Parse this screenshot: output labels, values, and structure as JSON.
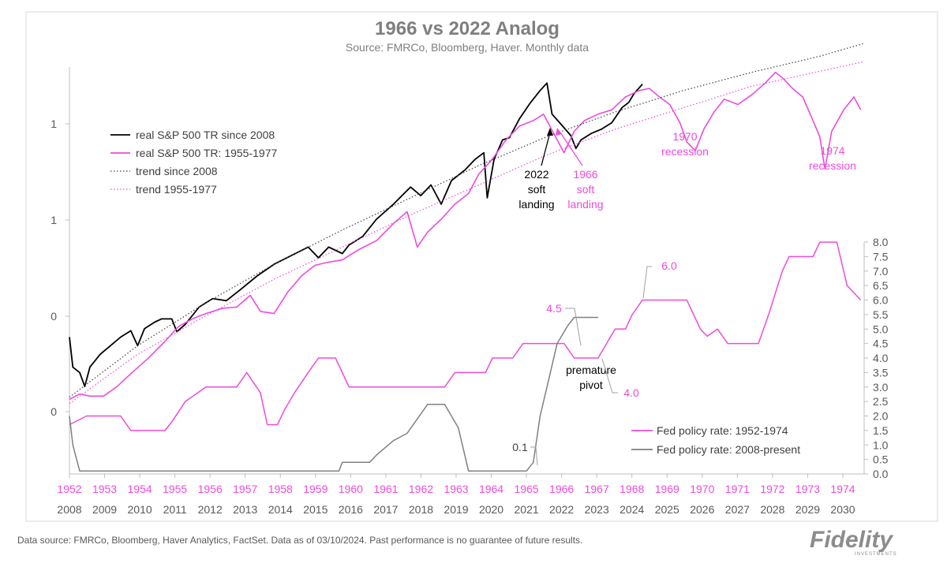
{
  "chart_data": {
    "type": "line",
    "title": "1966 vs 2022 Analog",
    "subtitle": "Source: FMRCo, Bloomberg, Haver.  Monthly data",
    "left_axis": {
      "scale": "log",
      "tick_labels": [
        "1",
        "1",
        "0",
        "0"
      ]
    },
    "right_axis": {
      "min": 0.0,
      "max": 8.0,
      "step": 0.5,
      "tick_labels": [
        "8.0",
        "7.5",
        "7.0",
        "6.5",
        "6.0",
        "5.5",
        "5.0",
        "4.5",
        "4.0",
        "3.5",
        "3.0",
        "2.5",
        "2.0",
        "1.5",
        "1.0",
        "0.5",
        "0.0"
      ]
    },
    "x_axis_top": {
      "color": "#ee4bdb",
      "labels": [
        "1952",
        "1953",
        "1954",
        "1955",
        "1956",
        "1957",
        "1958",
        "1959",
        "1960",
        "1961",
        "1962",
        "1963",
        "1964",
        "1965",
        "1966",
        "1967",
        "1968",
        "1969",
        "1970",
        "1971",
        "1972",
        "1973",
        "1974"
      ]
    },
    "x_axis_bottom": {
      "labels": [
        "2008",
        "2009",
        "2010",
        "2011",
        "2012",
        "2013",
        "2014",
        "2015",
        "2016",
        "2017",
        "2018",
        "2019",
        "2020",
        "2021",
        "2022",
        "2023",
        "2024",
        "2025",
        "2026",
        "2027",
        "2028",
        "2029",
        "2030"
      ]
    },
    "series": [
      {
        "name": "real S&P 500 TR since 2008",
        "color": "#000000",
        "axis": "left",
        "points": [
          [
            2008.0,
            0.88
          ],
          [
            2008.1,
            0.6
          ],
          [
            2008.3,
            0.55
          ],
          [
            2008.45,
            0.42
          ],
          [
            2008.6,
            0.6
          ],
          [
            2008.9,
            0.72
          ],
          [
            2009.2,
            0.8
          ],
          [
            2009.5,
            0.88
          ],
          [
            2009.8,
            0.94
          ],
          [
            2010.0,
            0.8
          ],
          [
            2010.2,
            0.96
          ],
          [
            2010.5,
            1.02
          ],
          [
            2010.7,
            1.05
          ],
          [
            2011.0,
            1.05
          ],
          [
            2011.15,
            0.93
          ],
          [
            2011.4,
            1.0
          ],
          [
            2011.8,
            1.16
          ],
          [
            2012.2,
            1.24
          ],
          [
            2012.6,
            1.22
          ],
          [
            2013.0,
            1.32
          ],
          [
            2013.5,
            1.45
          ],
          [
            2014.0,
            1.56
          ],
          [
            2014.5,
            1.64
          ],
          [
            2015.0,
            1.72
          ],
          [
            2015.3,
            1.62
          ],
          [
            2015.6,
            1.72
          ],
          [
            2016.0,
            1.66
          ],
          [
            2016.2,
            1.74
          ],
          [
            2016.6,
            1.82
          ],
          [
            2017.0,
            1.98
          ],
          [
            2017.5,
            2.12
          ],
          [
            2018.0,
            2.28
          ],
          [
            2018.3,
            2.2
          ],
          [
            2018.6,
            2.3
          ],
          [
            2018.9,
            2.12
          ],
          [
            2019.2,
            2.34
          ],
          [
            2019.6,
            2.44
          ],
          [
            2019.9,
            2.54
          ],
          [
            2020.15,
            2.6
          ],
          [
            2020.25,
            2.18
          ],
          [
            2020.45,
            2.54
          ],
          [
            2020.7,
            2.72
          ],
          [
            2020.9,
            2.74
          ],
          [
            2021.2,
            2.92
          ],
          [
            2021.5,
            3.06
          ],
          [
            2021.8,
            3.18
          ],
          [
            2022.0,
            3.25
          ],
          [
            2022.15,
            2.96
          ],
          [
            2022.4,
            2.87
          ],
          [
            2022.7,
            2.76
          ],
          [
            2022.85,
            2.64
          ],
          [
            2023.0,
            2.72
          ],
          [
            2023.3,
            2.78
          ],
          [
            2023.6,
            2.82
          ],
          [
            2023.9,
            2.88
          ],
          [
            2024.2,
            3.02
          ],
          [
            2024.4,
            3.07
          ],
          [
            2024.55,
            3.15
          ],
          [
            2024.8,
            3.24
          ]
        ]
      },
      {
        "name": "real S&P 500 TR: 1955-1977",
        "color": "#ee4bdb",
        "axis": "left",
        "points": [
          [
            2008.0,
            0.3
          ],
          [
            2008.3,
            0.35
          ],
          [
            2008.6,
            0.33
          ],
          [
            2009.0,
            0.33
          ],
          [
            2009.4,
            0.42
          ],
          [
            2009.8,
            0.54
          ],
          [
            2010.3,
            0.68
          ],
          [
            2010.8,
            0.84
          ],
          [
            2011.2,
            0.98
          ],
          [
            2011.6,
            1.05
          ],
          [
            2012.0,
            1.1
          ],
          [
            2012.5,
            1.15
          ],
          [
            2012.9,
            1.16
          ],
          [
            2013.3,
            1.27
          ],
          [
            2013.6,
            1.12
          ],
          [
            2014.0,
            1.1
          ],
          [
            2014.4,
            1.3
          ],
          [
            2014.8,
            1.45
          ],
          [
            2015.2,
            1.55
          ],
          [
            2015.6,
            1.58
          ],
          [
            2016.0,
            1.6
          ],
          [
            2016.5,
            1.7
          ],
          [
            2017.0,
            1.78
          ],
          [
            2017.5,
            1.94
          ],
          [
            2017.9,
            2.05
          ],
          [
            2018.2,
            1.72
          ],
          [
            2018.5,
            1.86
          ],
          [
            2018.9,
            1.98
          ],
          [
            2019.3,
            2.12
          ],
          [
            2019.7,
            2.22
          ],
          [
            2020.0,
            2.4
          ],
          [
            2020.4,
            2.54
          ],
          [
            2020.8,
            2.72
          ],
          [
            2021.2,
            2.85
          ],
          [
            2021.6,
            2.9
          ],
          [
            2021.9,
            2.96
          ],
          [
            2022.2,
            2.78
          ],
          [
            2022.5,
            2.6
          ],
          [
            2022.8,
            2.8
          ],
          [
            2023.1,
            2.9
          ],
          [
            2023.5,
            2.96
          ],
          [
            2023.9,
            3.0
          ],
          [
            2024.3,
            3.12
          ],
          [
            2024.7,
            3.18
          ],
          [
            2025.0,
            3.2
          ],
          [
            2025.3,
            3.12
          ],
          [
            2025.6,
            3.05
          ],
          [
            2025.9,
            2.88
          ],
          [
            2026.1,
            2.7
          ],
          [
            2026.35,
            2.62
          ],
          [
            2026.6,
            2.82
          ],
          [
            2026.9,
            2.98
          ],
          [
            2027.2,
            3.1
          ],
          [
            2027.6,
            3.05
          ],
          [
            2028.0,
            3.14
          ],
          [
            2028.4,
            3.25
          ],
          [
            2028.7,
            3.35
          ],
          [
            2028.9,
            3.3
          ],
          [
            2029.2,
            3.2
          ],
          [
            2029.5,
            3.12
          ],
          [
            2029.8,
            2.9
          ],
          [
            2030.0,
            2.75
          ],
          [
            2030.15,
            2.45
          ],
          [
            2030.35,
            2.8
          ],
          [
            2030.7,
            3.0
          ],
          [
            2031.0,
            3.12
          ],
          [
            2031.2,
            3.0
          ]
        ]
      },
      {
        "name": "trend since 2008",
        "color": "#404040",
        "style": "dotted",
        "axis": "left",
        "points": [
          [
            2008.0,
            0.32
          ],
          [
            2010.0,
            0.8
          ],
          [
            2012.0,
            1.2
          ],
          [
            2014.0,
            1.56
          ],
          [
            2016.0,
            1.88
          ],
          [
            2018.0,
            2.18
          ],
          [
            2020.0,
            2.48
          ],
          [
            2022.0,
            2.75
          ],
          [
            2024.0,
            2.98
          ],
          [
            2026.0,
            3.18
          ],
          [
            2028.0,
            3.35
          ],
          [
            2030.0,
            3.5
          ],
          [
            2031.3,
            3.62
          ]
        ]
      },
      {
        "name": "trend 1955-1977",
        "color": "#ee4bdb",
        "style": "dotted",
        "axis": "left",
        "points": [
          [
            2008.0,
            0.26
          ],
          [
            2010.0,
            0.72
          ],
          [
            2012.0,
            1.08
          ],
          [
            2014.0,
            1.42
          ],
          [
            2016.0,
            1.72
          ],
          [
            2018.0,
            2.02
          ],
          [
            2020.0,
            2.3
          ],
          [
            2022.0,
            2.58
          ],
          [
            2024.0,
            2.82
          ],
          [
            2026.0,
            3.02
          ],
          [
            2028.0,
            3.22
          ],
          [
            2030.0,
            3.36
          ],
          [
            2031.3,
            3.45
          ]
        ]
      },
      {
        "name": "Fed policy rate: 1952-1974",
        "color": "#ee4bdb",
        "axis": "right",
        "points": [
          [
            2008.0,
            1.7
          ],
          [
            2008.5,
            2.0
          ],
          [
            2009.5,
            2.0
          ],
          [
            2009.8,
            1.5
          ],
          [
            2010.8,
            1.5
          ],
          [
            2011.0,
            1.8
          ],
          [
            2011.4,
            2.5
          ],
          [
            2012.0,
            3.0
          ],
          [
            2012.9,
            3.0
          ],
          [
            2013.2,
            3.5
          ],
          [
            2013.6,
            2.8
          ],
          [
            2013.8,
            1.7
          ],
          [
            2014.1,
            1.7
          ],
          [
            2014.3,
            2.2
          ],
          [
            2014.6,
            2.8
          ],
          [
            2015.0,
            3.5
          ],
          [
            2015.3,
            4.0
          ],
          [
            2015.8,
            4.0
          ],
          [
            2016.2,
            3.0
          ],
          [
            2017.0,
            3.0
          ],
          [
            2019.0,
            3.0
          ],
          [
            2019.3,
            3.5
          ],
          [
            2020.2,
            3.5
          ],
          [
            2020.4,
            4.0
          ],
          [
            2021.0,
            4.0
          ],
          [
            2021.3,
            4.5
          ],
          [
            2022.5,
            4.5
          ],
          [
            2022.8,
            4.0
          ],
          [
            2023.5,
            4.0
          ],
          [
            2024.0,
            5.0
          ],
          [
            2024.3,
            5.0
          ],
          [
            2024.5,
            5.5
          ],
          [
            2024.8,
            6.0
          ],
          [
            2026.1,
            6.0
          ],
          [
            2026.5,
            5.0
          ],
          [
            2026.7,
            4.75
          ],
          [
            2027.0,
            5.0
          ],
          [
            2027.3,
            4.5
          ],
          [
            2028.2,
            4.5
          ],
          [
            2028.5,
            5.5
          ],
          [
            2028.9,
            7.0
          ],
          [
            2029.1,
            7.5
          ],
          [
            2029.8,
            7.5
          ],
          [
            2030.0,
            8.0
          ],
          [
            2030.5,
            8.0
          ],
          [
            2030.8,
            6.5
          ],
          [
            2031.0,
            6.25
          ],
          [
            2031.2,
            6.0
          ]
        ]
      },
      {
        "name": "Fed policy rate: 2008-present",
        "color": "#808080",
        "axis": "right",
        "points": [
          [
            2008.0,
            2.0
          ],
          [
            2008.1,
            1.0
          ],
          [
            2008.3,
            0.1
          ],
          [
            2015.9,
            0.1
          ],
          [
            2016.0,
            0.4
          ],
          [
            2016.8,
            0.4
          ],
          [
            2017.0,
            0.65
          ],
          [
            2017.5,
            1.15
          ],
          [
            2017.9,
            1.4
          ],
          [
            2018.2,
            1.9
          ],
          [
            2018.5,
            2.4
          ],
          [
            2019.0,
            2.4
          ],
          [
            2019.4,
            1.6
          ],
          [
            2019.7,
            0.1
          ],
          [
            2021.4,
            0.1
          ],
          [
            2021.6,
            0.4
          ],
          [
            2021.8,
            2.0
          ],
          [
            2022.0,
            3.0
          ],
          [
            2022.3,
            4.5
          ],
          [
            2022.6,
            5.1
          ],
          [
            2022.8,
            5.4
          ],
          [
            2023.5,
            5.4
          ]
        ]
      }
    ],
    "legend": {
      "position": "upper-left",
      "entries": [
        {
          "label": "real S&P 500 TR since 2008",
          "color": "#000000",
          "style": "solid"
        },
        {
          "label": "real S&P 500 TR: 1955-1977",
          "color": "#ee4bdb",
          "style": "solid"
        },
        {
          "label": "trend since 2008",
          "color": "#404040",
          "style": "dotted"
        },
        {
          "label": "trend 1955-1977",
          "color": "#ee4bdb",
          "style": "dotted"
        }
      ]
    },
    "rate_legend": {
      "position": "lower-right",
      "entries": [
        {
          "label": "Fed policy rate: 1952-1974",
          "color": "#ee4bdb"
        },
        {
          "label": "Fed policy rate: 2008-present",
          "color": "#808080"
        }
      ]
    },
    "annotations": [
      {
        "lines": [
          "2022",
          "soft",
          "landing"
        ],
        "color": "#000000"
      },
      {
        "lines": [
          "1966",
          "soft",
          "landing"
        ],
        "color": "#ee4bdb"
      },
      {
        "lines": [
          "1970",
          "recession"
        ],
        "color": "#ee4bdb"
      },
      {
        "lines": [
          "1974",
          "recession"
        ],
        "color": "#ee4bdb"
      },
      {
        "lines": [
          "premature",
          "pivot"
        ],
        "color": "#000000"
      },
      {
        "lines": [
          "4.5"
        ],
        "color": "#ee4bdb"
      },
      {
        "lines": [
          "6.0"
        ],
        "color": "#ee4bdb"
      },
      {
        "lines": [
          "4.0"
        ],
        "color": "#ee4bdb"
      },
      {
        "lines": [
          "0.1"
        ],
        "color": "#404040"
      }
    ]
  },
  "footer": "Data source: FMRCo, Bloomberg, Haver Analytics, FactSet. Data as of 03/10/2024. Past performance is no guarantee of future results.",
  "logo": {
    "name": "Fidelity",
    "sub": "INVESTMENTS"
  }
}
